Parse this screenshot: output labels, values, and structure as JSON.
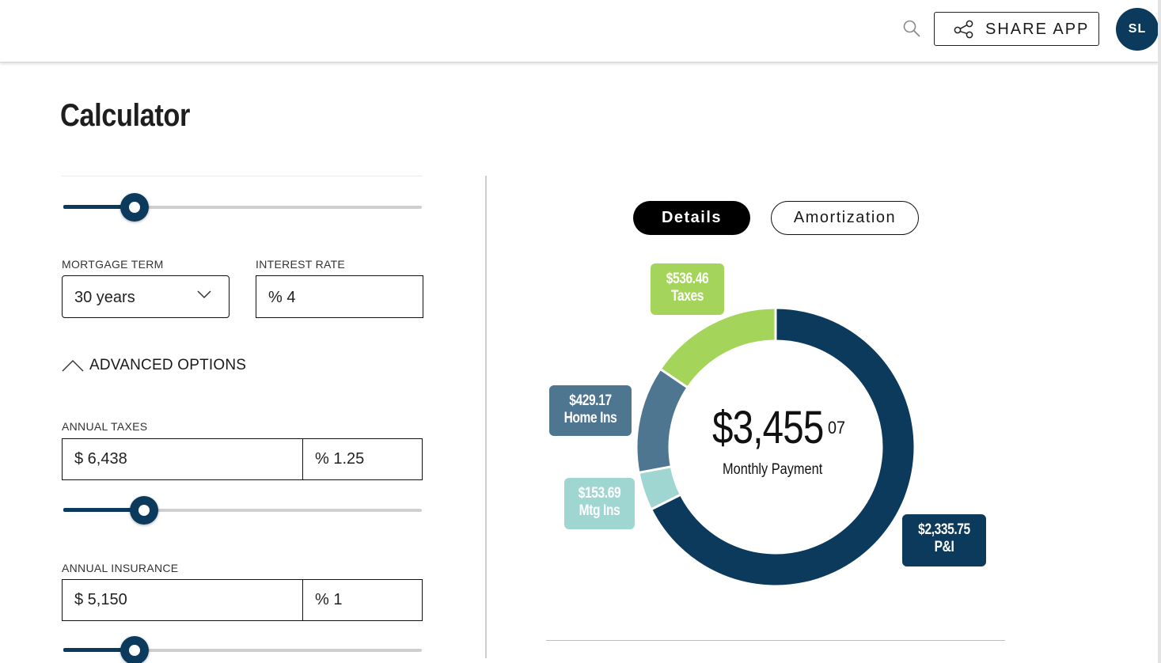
{
  "header": {
    "share_label": "SHARE APP",
    "avatar_initials": "SL"
  },
  "page": {
    "title": "Calculator"
  },
  "form": {
    "mortgage_term": {
      "label": "MORTGAGE TERM",
      "value": "30 years"
    },
    "interest_rate": {
      "label": "INTEREST RATE",
      "value": "% 4"
    },
    "advanced_options_label": "ADVANCED OPTIONS",
    "annual_taxes": {
      "label": "ANNUAL TAXES",
      "amount": "$ 6,438",
      "percent": "% 1.25"
    },
    "annual_insurance": {
      "label": "ANNUAL INSURANCE",
      "amount": "$ 5,150",
      "percent": "% 1"
    },
    "sliders": {
      "down_payment_level": 0.1,
      "taxes_level": 0.125,
      "insurance_level": 0.1
    }
  },
  "tabs": [
    {
      "label": "Details",
      "active": true
    },
    {
      "label": "Amortization",
      "active": false
    }
  ],
  "summary": {
    "amount": "$3,455",
    "cents": "07",
    "caption": "Monthly Payment"
  },
  "breakdown": [
    {
      "key": "pi",
      "amount": "$2,335.75",
      "label": "P&I",
      "value": 2335.75,
      "color": "#0b3a5c"
    },
    {
      "key": "mtg",
      "amount": "$153.69",
      "label": "Mtg Ins",
      "value": 153.69,
      "color": "#a0d6d2"
    },
    {
      "key": "home",
      "amount": "$429.17",
      "label": "Home Ins",
      "value": 429.17,
      "color": "#4e7691"
    },
    {
      "key": "taxes",
      "amount": "$536.46",
      "label": "Taxes",
      "value": 536.46,
      "color": "#a4d45a"
    }
  ],
  "icons": {
    "search": "search-icon",
    "share": "share-icon",
    "dropdown": "chevron-down-icon",
    "collapse": "chevron-up-icon"
  }
}
